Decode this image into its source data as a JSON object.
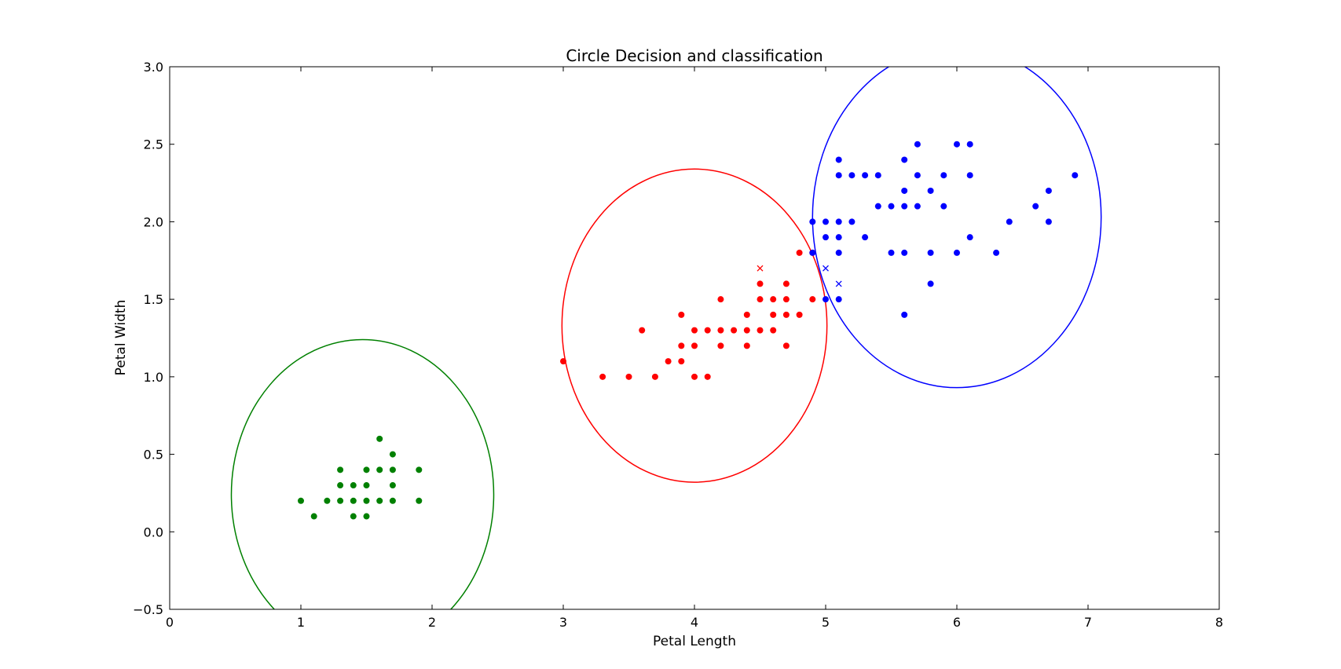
{
  "chart_data": {
    "type": "scatter",
    "title": "Circle Decision and classification",
    "xlabel": "Petal Length",
    "ylabel": "Petal Width",
    "xlim": [
      0,
      8
    ],
    "ylim": [
      -0.5,
      3.0
    ],
    "xticks": [
      "0",
      "1",
      "2",
      "3",
      "4",
      "5",
      "6",
      "7",
      "8"
    ],
    "yticks": [
      "−0.5",
      "0.0",
      "0.5",
      "1.0",
      "1.5",
      "2.0",
      "2.5",
      "3.0"
    ],
    "grid": false,
    "series": [
      {
        "color": "#008000",
        "marker": "circle",
        "points": [
          [
            1.0,
            0.2
          ],
          [
            1.1,
            0.1
          ],
          [
            1.2,
            0.2
          ],
          [
            1.3,
            0.2
          ],
          [
            1.3,
            0.3
          ],
          [
            1.3,
            0.4
          ],
          [
            1.4,
            0.1
          ],
          [
            1.4,
            0.2
          ],
          [
            1.4,
            0.3
          ],
          [
            1.5,
            0.1
          ],
          [
            1.5,
            0.2
          ],
          [
            1.5,
            0.3
          ],
          [
            1.5,
            0.4
          ],
          [
            1.6,
            0.2
          ],
          [
            1.6,
            0.4
          ],
          [
            1.6,
            0.6
          ],
          [
            1.7,
            0.2
          ],
          [
            1.7,
            0.3
          ],
          [
            1.7,
            0.4
          ],
          [
            1.7,
            0.5
          ],
          [
            1.9,
            0.2
          ],
          [
            1.9,
            0.4
          ]
        ]
      },
      {
        "color": "#ff0000",
        "marker": "circle",
        "points": [
          [
            3.0,
            1.1
          ],
          [
            3.3,
            1.0
          ],
          [
            3.5,
            1.0
          ],
          [
            3.6,
            1.3
          ],
          [
            3.7,
            1.0
          ],
          [
            3.8,
            1.1
          ],
          [
            3.9,
            1.1
          ],
          [
            3.9,
            1.2
          ],
          [
            3.9,
            1.4
          ],
          [
            4.0,
            1.0
          ],
          [
            4.0,
            1.2
          ],
          [
            4.0,
            1.3
          ],
          [
            4.1,
            1.0
          ],
          [
            4.1,
            1.3
          ],
          [
            4.2,
            1.2
          ],
          [
            4.2,
            1.3
          ],
          [
            4.2,
            1.5
          ],
          [
            4.3,
            1.3
          ],
          [
            4.4,
            1.2
          ],
          [
            4.4,
            1.3
          ],
          [
            4.4,
            1.4
          ],
          [
            4.5,
            1.3
          ],
          [
            4.5,
            1.5
          ],
          [
            4.5,
            1.6
          ],
          [
            4.6,
            1.3
          ],
          [
            4.6,
            1.4
          ],
          [
            4.6,
            1.5
          ],
          [
            4.7,
            1.2
          ],
          [
            4.7,
            1.4
          ],
          [
            4.7,
            1.5
          ],
          [
            4.7,
            1.6
          ],
          [
            4.8,
            1.4
          ],
          [
            4.8,
            1.8
          ],
          [
            4.9,
            1.5
          ],
          [
            4.9,
            1.8
          ]
        ]
      },
      {
        "color": "#0000ff",
        "marker": "circle",
        "points": [
          [
            4.9,
            2.0
          ],
          [
            4.9,
            1.8
          ],
          [
            5.0,
            2.0
          ],
          [
            5.0,
            1.9
          ],
          [
            5.0,
            1.5
          ],
          [
            5.1,
            2.4
          ],
          [
            5.1,
            2.3
          ],
          [
            5.1,
            2.0
          ],
          [
            5.1,
            1.9
          ],
          [
            5.1,
            1.8
          ],
          [
            5.1,
            1.5
          ],
          [
            5.2,
            2.3
          ],
          [
            5.2,
            2.0
          ],
          [
            5.3,
            2.3
          ],
          [
            5.3,
            1.9
          ],
          [
            5.4,
            2.3
          ],
          [
            5.4,
            2.1
          ],
          [
            5.5,
            2.1
          ],
          [
            5.5,
            1.8
          ],
          [
            5.6,
            2.4
          ],
          [
            5.6,
            2.2
          ],
          [
            5.6,
            2.1
          ],
          [
            5.6,
            1.8
          ],
          [
            5.6,
            1.4
          ],
          [
            5.7,
            2.5
          ],
          [
            5.7,
            2.3
          ],
          [
            5.7,
            2.1
          ],
          [
            5.8,
            2.2
          ],
          [
            5.8,
            1.8
          ],
          [
            5.8,
            1.6
          ],
          [
            5.9,
            2.3
          ],
          [
            5.9,
            2.1
          ],
          [
            6.0,
            2.5
          ],
          [
            6.0,
            1.8
          ],
          [
            6.1,
            2.5
          ],
          [
            6.1,
            2.3
          ],
          [
            6.1,
            1.9
          ],
          [
            6.3,
            1.8
          ],
          [
            6.4,
            2.0
          ],
          [
            6.6,
            2.1
          ],
          [
            6.7,
            2.2
          ],
          [
            6.7,
            2.0
          ],
          [
            6.9,
            2.3
          ]
        ]
      },
      {
        "color": "#ff0000",
        "marker": "x",
        "points": [
          [
            4.5,
            1.7
          ]
        ]
      },
      {
        "color": "#0000ff",
        "marker": "x",
        "points": [
          [
            5.0,
            1.7
          ],
          [
            5.1,
            1.6
          ]
        ]
      }
    ],
    "ellipses": [
      {
        "color": "#008000",
        "cx": 1.47,
        "cy": 0.24,
        "rx": 1.0,
        "ry": 1.0
      },
      {
        "color": "#ff0000",
        "cx": 4.0,
        "cy": 1.33,
        "rx": 1.01,
        "ry": 1.01
      },
      {
        "color": "#0000ff",
        "cx": 6.0,
        "cy": 2.03,
        "rx": 1.1,
        "ry": 1.1
      }
    ]
  }
}
